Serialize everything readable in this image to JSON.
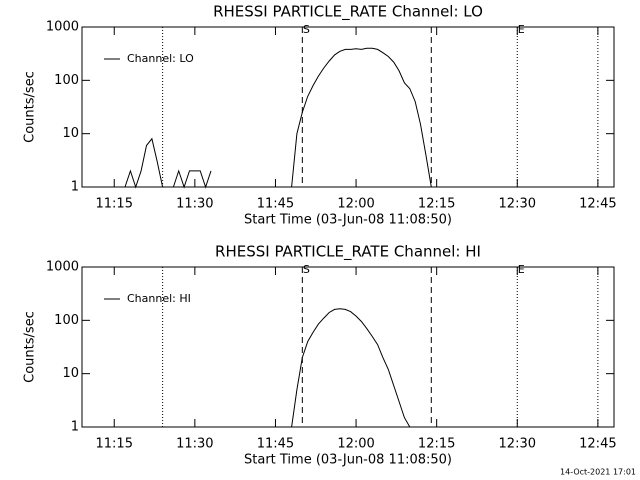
{
  "chart_data": [
    {
      "type": "line",
      "title": "RHESSI PARTICLE_RATE Channel: LO",
      "xlabel": "Start Time (03-Jun-08 11:08:50)",
      "ylabel": "Counts/sec",
      "log_y": true,
      "legend": "top-left",
      "xlim": [
        "11:09",
        "12:48"
      ],
      "xticks": [
        "11:15",
        "11:30",
        "11:45",
        "12:00",
        "12:15",
        "12:30",
        "12:45"
      ],
      "ylim": [
        1,
        1000
      ],
      "yticks": [
        1,
        10,
        100,
        1000
      ],
      "vlines": [
        {
          "x": "11:50",
          "style": "dashed",
          "label": "S"
        },
        {
          "x": "12:14",
          "style": "dashed"
        },
        {
          "x": "11:24",
          "style": "dotted"
        },
        {
          "x": "12:30",
          "style": "dotted",
          "label": "E"
        },
        {
          "x": "12:45",
          "style": "dotted"
        }
      ],
      "x": [
        "11:17",
        "11:18",
        "11:19",
        "11:20",
        "11:21",
        "11:22",
        "11:23",
        "11:24",
        "11:25",
        "11:26",
        "11:27",
        "11:28",
        "11:29",
        "11:30",
        "11:31",
        "11:32",
        "11:33",
        "11:34",
        "11:48",
        "11:49",
        "11:50",
        "11:51",
        "11:52",
        "11:53",
        "11:54",
        "11:55",
        "11:56",
        "11:57",
        "11:58",
        "11:59",
        "12:00",
        "12:01",
        "12:02",
        "12:03",
        "12:04",
        "12:05",
        "12:06",
        "12:07",
        "12:08",
        "12:09",
        "12:10",
        "12:11",
        "12:12",
        "12:13",
        "12:14"
      ],
      "series": [
        {
          "name": "Channel: LO",
          "color": "#000000",
          "values": [
            1,
            2,
            1,
            2,
            6,
            8,
            3,
            1,
            null,
            1,
            2,
            1,
            2,
            2,
            2,
            1,
            2,
            null,
            1,
            10,
            25,
            50,
            80,
            120,
            170,
            230,
            300,
            350,
            380,
            380,
            390,
            380,
            400,
            400,
            380,
            330,
            280,
            220,
            150,
            90,
            70,
            40,
            15,
            4,
            1
          ]
        }
      ]
    },
    {
      "type": "line",
      "title": "RHESSI PARTICLE_RATE Channel: HI",
      "xlabel": "Start Time (03-Jun-08 11:08:50)",
      "ylabel": "Counts/sec",
      "log_y": true,
      "legend": "top-left",
      "xlim": [
        "11:09",
        "12:48"
      ],
      "xticks": [
        "11:15",
        "11:30",
        "11:45",
        "12:00",
        "12:15",
        "12:30",
        "12:45"
      ],
      "ylim": [
        1,
        1000
      ],
      "yticks": [
        1,
        10,
        100,
        1000
      ],
      "vlines": [
        {
          "x": "11:50",
          "style": "dashed",
          "label": "S"
        },
        {
          "x": "12:14",
          "style": "dashed"
        },
        {
          "x": "11:24",
          "style": "dotted"
        },
        {
          "x": "12:30",
          "style": "dotted",
          "label": "E"
        },
        {
          "x": "12:45",
          "style": "dotted"
        }
      ],
      "x": [
        "11:48",
        "11:49",
        "11:50",
        "11:51",
        "11:52",
        "11:53",
        "11:54",
        "11:55",
        "11:56",
        "11:57",
        "11:58",
        "11:59",
        "12:00",
        "12:01",
        "12:02",
        "12:03",
        "12:04",
        "12:05",
        "12:06",
        "12:07",
        "12:08",
        "12:09",
        "12:10"
      ],
      "series": [
        {
          "name": "Channel: HI",
          "color": "#000000",
          "values": [
            1,
            5,
            20,
            40,
            60,
            85,
            110,
            140,
            160,
            165,
            160,
            145,
            120,
            95,
            70,
            50,
            35,
            20,
            12,
            6,
            3,
            1.5,
            1
          ]
        }
      ]
    }
  ],
  "footer": "14-Oct-2021 17:01"
}
